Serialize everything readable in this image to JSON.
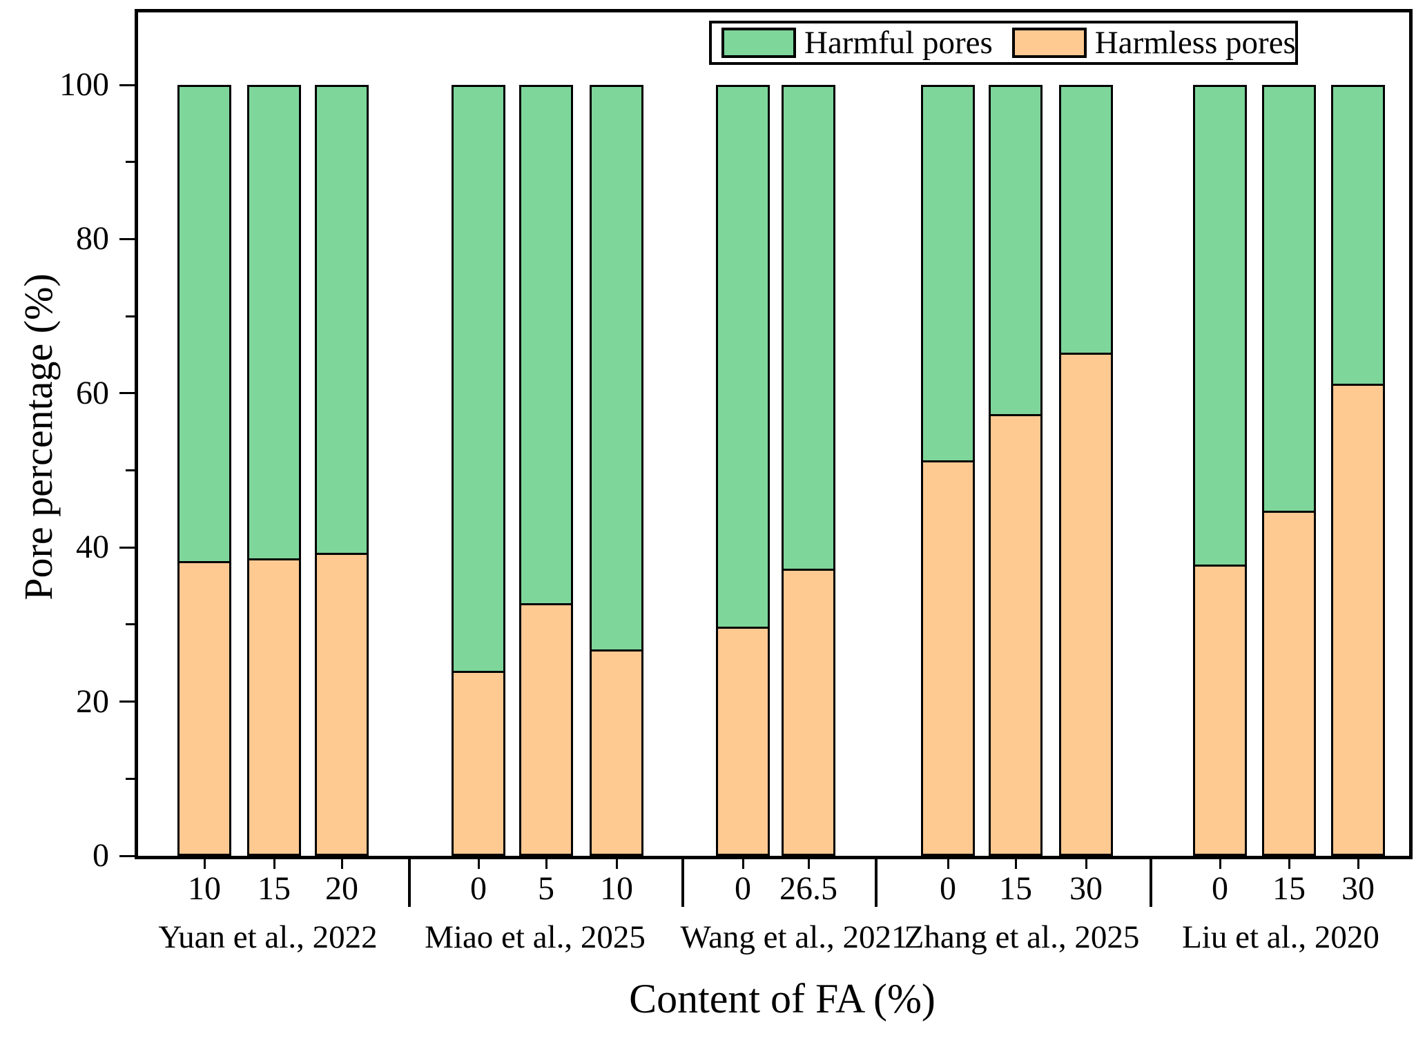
{
  "figure_title": "",
  "axes": {
    "x_title": "Content of FA (%)",
    "y_title": "Pore percentage (%)"
  },
  "legend": {
    "items": [
      {
        "label": "Harmful pores",
        "color": "#7ED69B"
      },
      {
        "label": "Harmless pores",
        "color": "#FFC992"
      }
    ]
  },
  "chart_data": {
    "type": "bar",
    "stacked": true,
    "units": "%",
    "xlabel": "Content of FA (%)",
    "ylabel": "Pore percentage (%)",
    "ylim": [
      0,
      110
    ],
    "yticks": [
      0,
      20,
      40,
      60,
      80,
      100
    ],
    "yminorticks": [
      10,
      30,
      50,
      70,
      90
    ],
    "grid": false,
    "legend_position": "top-right-inside",
    "series_names": [
      "Harmful pores",
      "Harmless pores"
    ],
    "series_colors": [
      "#7ED69B",
      "#FFC992"
    ],
    "groups": [
      {
        "label": "Yuan et al., 2022",
        "bars": [
          {
            "x": "10",
            "harmless_pores": 38.0,
            "harmful_pores": 62.0
          },
          {
            "x": "15",
            "harmless_pores": 38.3,
            "harmful_pores": 61.7
          },
          {
            "x": "20",
            "harmless_pores": 39.0,
            "harmful_pores": 61.0
          }
        ]
      },
      {
        "label": "Miao et al., 2025",
        "bars": [
          {
            "x": "0",
            "harmless_pores": 23.7,
            "harmful_pores": 76.3
          },
          {
            "x": "5",
            "harmless_pores": 32.5,
            "harmful_pores": 67.5
          },
          {
            "x": "10",
            "harmless_pores": 26.5,
            "harmful_pores": 73.5
          }
        ]
      },
      {
        "label": "Wang et al., 2021",
        "bars": [
          {
            "x": "0",
            "harmless_pores": 29.5,
            "harmful_pores": 70.5
          },
          {
            "x": "26.5",
            "harmless_pores": 37.0,
            "harmful_pores": 63.0
          }
        ]
      },
      {
        "label": "Zhang et al., 2025",
        "bars": [
          {
            "x": "0",
            "harmless_pores": 51.0,
            "harmful_pores": 49.0
          },
          {
            "x": "15",
            "harmless_pores": 57.0,
            "harmful_pores": 43.0
          },
          {
            "x": "30",
            "harmless_pores": 65.0,
            "harmful_pores": 35.0
          }
        ]
      },
      {
        "label": "Liu et al., 2020",
        "bars": [
          {
            "x": "0",
            "harmless_pores": 37.5,
            "harmful_pores": 62.5
          },
          {
            "x": "15",
            "harmless_pores": 44.5,
            "harmful_pores": 55.5
          },
          {
            "x": "30",
            "harmless_pores": 61.0,
            "harmful_pores": 39.0
          }
        ]
      }
    ]
  }
}
